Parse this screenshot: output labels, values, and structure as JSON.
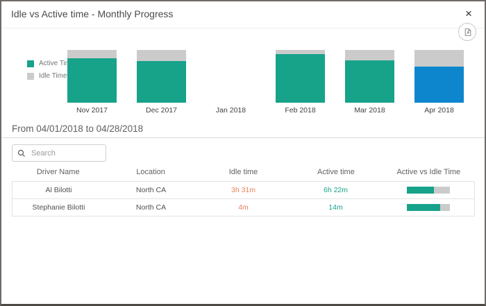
{
  "dialog": {
    "title": "Idle vs Active time - Monthly Progress",
    "close_glyph": "×"
  },
  "colors": {
    "active_teal": "#17a28a",
    "idle_gray": "#cbcbcb",
    "selected_blue": "#0d86ce",
    "idle_text_orange": "#e8805a"
  },
  "chart_data": {
    "type": "bar",
    "stacked": true,
    "title": "Idle vs Active time - Monthly Progress",
    "categories": [
      "Nov 2017",
      "Dec 2017",
      "Jan 2018",
      "Feb 2018",
      "Mar 2018",
      "Apr 2018"
    ],
    "series": [
      {
        "name": "Active Time",
        "values": [
          84,
          79,
          0,
          92,
          80,
          69
        ]
      },
      {
        "name": "Idle Time",
        "values": [
          16,
          21,
          0,
          8,
          20,
          31
        ]
      }
    ],
    "value_unit": "percent of month total time",
    "selected_category": "Apr 2018",
    "legend_position": "left",
    "grid": false
  },
  "range": {
    "label": "From 04/01/2018 to 04/28/2018"
  },
  "search": {
    "placeholder": "Search"
  },
  "table": {
    "columns": [
      "Driver Name",
      "Location",
      "Idle time",
      "Active time",
      "Active vs Idle Time"
    ],
    "rows": [
      {
        "driver": "Al Bilotti",
        "location": "North CA",
        "idle_time": "3h 31m",
        "active_time": "6h 22m",
        "active_pct": 64
      },
      {
        "driver": "Stephanie Bilotti",
        "location": "North CA",
        "idle_time": "4m",
        "active_time": "14m",
        "active_pct": 78
      }
    ]
  }
}
